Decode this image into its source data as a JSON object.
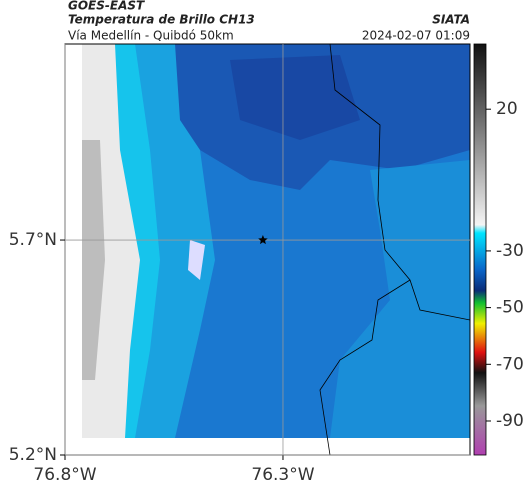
{
  "header": {
    "source": "GOES-EAST",
    "title": "Temperatura de Brillo CH13",
    "org": "SIATA",
    "route": "Vía Medellín - Quibdó 50km",
    "timestamp": "2024-02-07 01:09"
  },
  "map": {
    "xlim": [
      -76.8,
      -75.871
    ],
    "ylim": [
      5.2,
      6.156
    ],
    "xticks": [
      {
        "value": -76.8,
        "label": "76.8°W"
      },
      {
        "value": -76.3,
        "label": "76.3°W"
      }
    ],
    "yticks": [
      {
        "value": 5.2,
        "label": "5.2°N"
      },
      {
        "value": 5.7,
        "label": "5.7°N"
      }
    ],
    "grid": true,
    "marker": {
      "lon": -76.346,
      "lat": 5.7
    }
  },
  "colorbar": {
    "lim": [
      -102,
      43
    ],
    "ticks": [
      20,
      -30,
      -50,
      -70,
      -90
    ]
  }
}
